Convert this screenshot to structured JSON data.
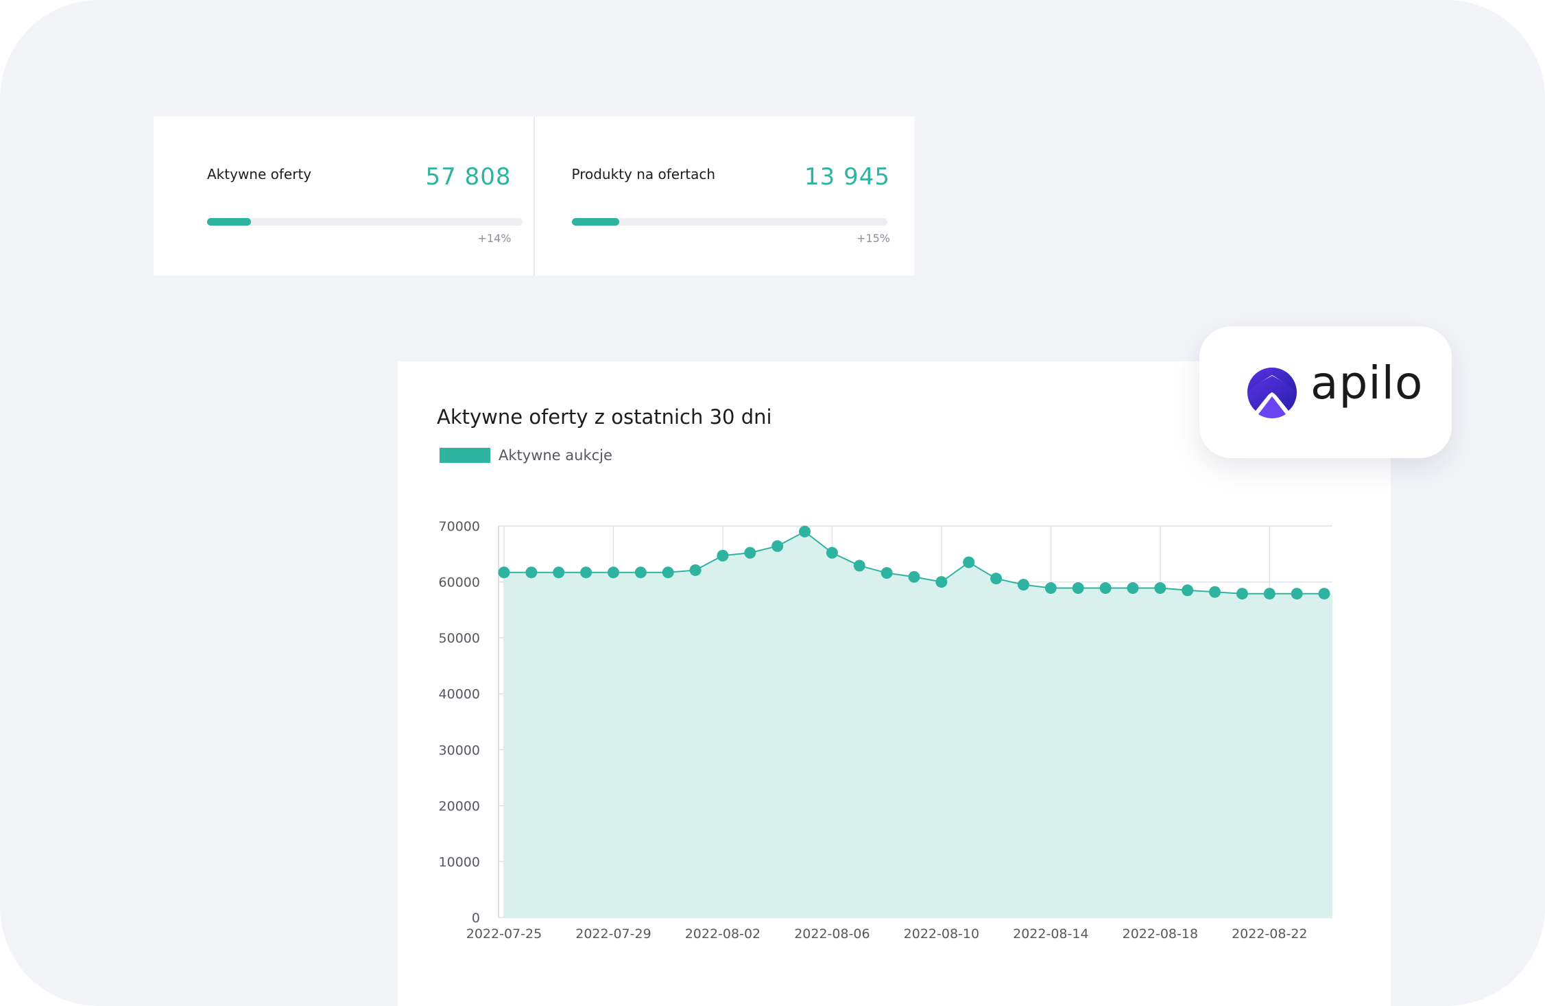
{
  "stats": [
    {
      "label": "Aktywne oferty",
      "value": "57 808",
      "progress": 0.14,
      "delta": "+14%"
    },
    {
      "label": "Produkty na ofertach",
      "value": "13 945",
      "progress": 0.15,
      "delta": "+15%"
    }
  ],
  "chart": {
    "title": "Aktywne oferty z ostatnich 30 dni",
    "legend_label": "Aktywne aukcje"
  },
  "logo": {
    "wordmark": "apilo"
  },
  "colors": {
    "accent": "#2eb3a0",
    "area_fill": "#d8f1ec",
    "background": "#f3f4f8",
    "logo_gradient_start": "#5b32e8",
    "logo_gradient_end": "#2a1fa8"
  },
  "chart_data": {
    "type": "area",
    "title": "Aktywne oferty z ostatnich 30 dni",
    "xlabel": "",
    "ylabel": "",
    "ylim": [
      0,
      70000
    ],
    "yticks": [
      0,
      10000,
      20000,
      30000,
      40000,
      50000,
      60000,
      70000
    ],
    "xtick_labels": [
      "2022-07-25",
      "2022-07-29",
      "2022-08-02",
      "2022-08-06",
      "2022-08-10",
      "2022-08-14",
      "2022-08-18",
      "2022-08-22"
    ],
    "grid": true,
    "legend": "top-left",
    "x": [
      "2022-07-25",
      "2022-07-26",
      "2022-07-27",
      "2022-07-28",
      "2022-07-29",
      "2022-07-30",
      "2022-07-31",
      "2022-08-01",
      "2022-08-02",
      "2022-08-03",
      "2022-08-04",
      "2022-08-05",
      "2022-08-06",
      "2022-08-07",
      "2022-08-08",
      "2022-08-09",
      "2022-08-10",
      "2022-08-11",
      "2022-08-12",
      "2022-08-13",
      "2022-08-14",
      "2022-08-15",
      "2022-08-16",
      "2022-08-17",
      "2022-08-18",
      "2022-08-19",
      "2022-08-20",
      "2022-08-21",
      "2022-08-22",
      "2022-08-23",
      "2022-08-24"
    ],
    "series": [
      {
        "name": "Aktywne aukcje",
        "values": [
          61700,
          61700,
          61700,
          61700,
          61700,
          61700,
          61700,
          62100,
          64700,
          65200,
          66400,
          69000,
          65200,
          62900,
          61600,
          60900,
          60000,
          63500,
          60600,
          59500,
          58900,
          58900,
          58900,
          58900,
          58900,
          58500,
          58200,
          57900,
          57900,
          57900,
          57900
        ]
      }
    ]
  }
}
